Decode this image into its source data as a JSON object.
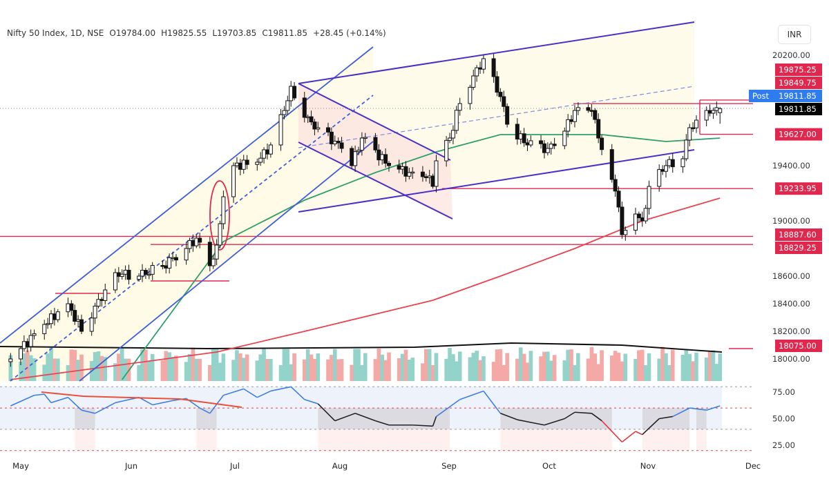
{
  "header": {
    "symbol": "Nifty 50 Index, 1D, NSE",
    "open": "O19784.00",
    "high": "H19825.55",
    "low": "L19703.85",
    "close": "C19811.85",
    "change": "+28.45 (+0.14%)"
  },
  "currency": "INR",
  "colors": {
    "up_volume": "#93d3c9",
    "down_volume": "#f5a9a6",
    "ma50": "#2e9e6b",
    "ma200": "#e8434f",
    "channel": "#3f5fd6",
    "flag": "#4a2fc8",
    "level": "#e0284f",
    "post": "#2f7cf0",
    "rsi_up": "#3e7ee0",
    "rsi_mid": "#222222",
    "rsi_down": "#e8343c"
  },
  "price_axis": {
    "ticks": [
      "20200.00",
      "19400.00",
      "19000.00",
      "18600.00",
      "18400.00",
      "18200.00",
      "18000.00"
    ],
    "values": [
      20200,
      19400,
      19000,
      18600,
      18400,
      18200,
      18000
    ]
  },
  "price_labels": [
    {
      "text": "19875.25",
      "value": 19875.25,
      "kind": "level"
    },
    {
      "text": "19849.75",
      "value": 19849.75,
      "kind": "level"
    },
    {
      "text": "19811.85",
      "value": 19811.85,
      "kind": "post",
      "tag": "Post"
    },
    {
      "text": "19811.85",
      "value": 19811.85,
      "kind": "last"
    },
    {
      "text": "19627.00",
      "value": 19627.0,
      "kind": "level"
    },
    {
      "text": "19233.95",
      "value": 19233.95,
      "kind": "level"
    },
    {
      "text": "18887.60",
      "value": 18887.6,
      "kind": "level"
    },
    {
      "text": "18829.25",
      "value": 18829.25,
      "kind": "level"
    },
    {
      "text": "18075.00",
      "value": 18075.0,
      "kind": "level"
    }
  ],
  "rsi_axis": {
    "ticks": [
      "75.00",
      "50.00",
      "25.00"
    ],
    "values": [
      75,
      50,
      25
    ],
    "bands": [
      80,
      60,
      40,
      20
    ]
  },
  "time_axis": [
    "May",
    "Jun",
    "Jul",
    "Aug",
    "Sep",
    "Oct",
    "Nov",
    "Dec"
  ],
  "chart_data": {
    "type": "candlestick",
    "title": "",
    "timeframe": "1D",
    "ylim": [
      17850,
      20450
    ],
    "grid": false,
    "closes": [
      [
        "2023-04-28",
        18000
      ],
      [
        "2023-05-08",
        18250
      ],
      [
        "2023-05-15",
        18400
      ],
      [
        "2023-05-19",
        18200
      ],
      [
        "2023-05-26",
        18500
      ],
      [
        "2023-05-29",
        18625
      ],
      [
        "2023-06-05",
        18600
      ],
      [
        "2023-06-12",
        18675
      ],
      [
        "2023-06-19",
        18800
      ],
      [
        "2023-06-22",
        18875
      ],
      [
        "2023-06-26",
        18675
      ],
      [
        "2023-06-28",
        18825
      ],
      [
        "2023-06-30",
        19175
      ],
      [
        "2023-07-03",
        19400
      ],
      [
        "2023-07-10",
        19425
      ],
      [
        "2023-07-14",
        19550
      ],
      [
        "2023-07-18",
        19800
      ],
      [
        "2023-07-20",
        19975
      ],
      [
        "2023-07-24",
        19750
      ],
      [
        "2023-07-28",
        19675
      ],
      [
        "2023-08-04",
        19525
      ],
      [
        "2023-08-07",
        19400
      ],
      [
        "2023-08-10",
        19600
      ],
      [
        "2023-08-18",
        19400
      ],
      [
        "2023-08-24",
        19350
      ],
      [
        "2023-08-30",
        19325
      ],
      [
        "2023-08-31",
        19250
      ],
      [
        "2023-09-01",
        19435
      ],
      [
        "2023-09-05",
        19600
      ],
      [
        "2023-09-08",
        19850
      ],
      [
        "2023-09-12",
        20050
      ],
      [
        "2023-09-15",
        20175
      ],
      [
        "2023-09-20",
        19900
      ],
      [
        "2023-09-22",
        19700
      ],
      [
        "2023-09-28",
        19550
      ],
      [
        "2023-10-04",
        19525
      ],
      [
        "2023-10-09",
        19650
      ],
      [
        "2023-10-12",
        19800
      ],
      [
        "2023-10-17",
        19800
      ],
      [
        "2023-10-19",
        19600
      ],
      [
        "2023-10-23",
        19300
      ],
      [
        "2023-10-25",
        19100
      ],
      [
        "2023-10-26",
        18900
      ],
      [
        "2023-10-30",
        19050
      ],
      [
        "2023-11-01",
        19000
      ],
      [
        "2023-11-03",
        19250
      ],
      [
        "2023-11-08",
        19400
      ],
      [
        "2023-11-13",
        19450
      ],
      [
        "2023-11-15",
        19675
      ],
      [
        "2023-11-17",
        19730
      ],
      [
        "2023-11-21",
        19780
      ],
      [
        "2023-11-24",
        19811.85
      ]
    ],
    "last_bar": {
      "open": 19784.0,
      "high": 19825.55,
      "low": 19703.85,
      "close": 19811.85
    },
    "ma50": [
      [
        "2023-05-31",
        17850
      ],
      [
        "2023-06-30",
        18850
      ],
      [
        "2023-07-24",
        19150
      ],
      [
        "2023-08-14",
        19350
      ],
      [
        "2023-09-01",
        19500
      ],
      [
        "2023-09-20",
        19625
      ],
      [
        "2023-10-06",
        19625
      ],
      [
        "2023-10-20",
        19625
      ],
      [
        "2023-11-08",
        19575
      ],
      [
        "2023-11-24",
        19600
      ]
    ],
    "ma200": [
      [
        "2023-04-28",
        17850
      ],
      [
        "2023-06-28",
        18050
      ],
      [
        "2023-07-24",
        18200
      ],
      [
        "2023-08-31",
        18425
      ],
      [
        "2023-09-20",
        18600
      ],
      [
        "2023-10-12",
        18800
      ],
      [
        "2023-11-01",
        19000
      ],
      [
        "2023-11-24",
        19165
      ]
    ],
    "rsi": [
      [
        "2023-04-28",
        62
      ],
      [
        "2023-05-05",
        72
      ],
      [
        "2023-05-08",
        73
      ],
      [
        "2023-05-10",
        65
      ],
      [
        "2023-05-15",
        70
      ],
      [
        "2023-05-19",
        58
      ],
      [
        "2023-05-23",
        55
      ],
      [
        "2023-05-29",
        65
      ],
      [
        "2023-06-05",
        70
      ],
      [
        "2023-06-09",
        63
      ],
      [
        "2023-06-15",
        67
      ],
      [
        "2023-06-19",
        69
      ],
      [
        "2023-06-23",
        60
      ],
      [
        "2023-06-26",
        55
      ],
      [
        "2023-06-30",
        72
      ],
      [
        "2023-07-06",
        78
      ],
      [
        "2023-07-10",
        70
      ],
      [
        "2023-07-14",
        76
      ],
      [
        "2023-07-20",
        80
      ],
      [
        "2023-07-24",
        68
      ],
      [
        "2023-07-28",
        64
      ],
      [
        "2023-08-02",
        48
      ],
      [
        "2023-08-08",
        55
      ],
      [
        "2023-08-14",
        48
      ],
      [
        "2023-08-18",
        44
      ],
      [
        "2023-08-25",
        44
      ],
      [
        "2023-08-31",
        43
      ],
      [
        "2023-09-01",
        52
      ],
      [
        "2023-09-08",
        68
      ],
      [
        "2023-09-15",
        76
      ],
      [
        "2023-09-20",
        55
      ],
      [
        "2023-09-25",
        49
      ],
      [
        "2023-10-03",
        44
      ],
      [
        "2023-10-09",
        50
      ],
      [
        "2023-10-12",
        56
      ],
      [
        "2023-10-17",
        55
      ],
      [
        "2023-10-20",
        48
      ],
      [
        "2023-10-26",
        28
      ],
      [
        "2023-10-30",
        38
      ],
      [
        "2023-11-01",
        35
      ],
      [
        "2023-11-06",
        50
      ],
      [
        "2023-11-10",
        52
      ],
      [
        "2023-11-15",
        60
      ],
      [
        "2023-11-20",
        58
      ],
      [
        "2023-11-24",
        62
      ]
    ]
  }
}
